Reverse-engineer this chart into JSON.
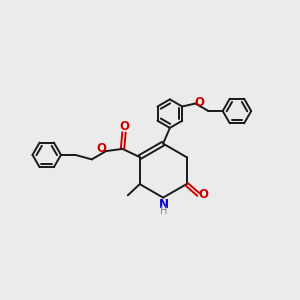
{
  "background_color": "#ebebeb",
  "bond_color": "#1a1a1a",
  "N_color": "#0000cc",
  "O_color": "#cc0000",
  "H_color": "#888888",
  "figsize": [
    3.0,
    3.0
  ],
  "dpi": 100,
  "lw": 1.4,
  "ring_r": 0.38,
  "xlim": [
    -3.8,
    4.2
  ],
  "ylim": [
    -3.2,
    3.2
  ]
}
